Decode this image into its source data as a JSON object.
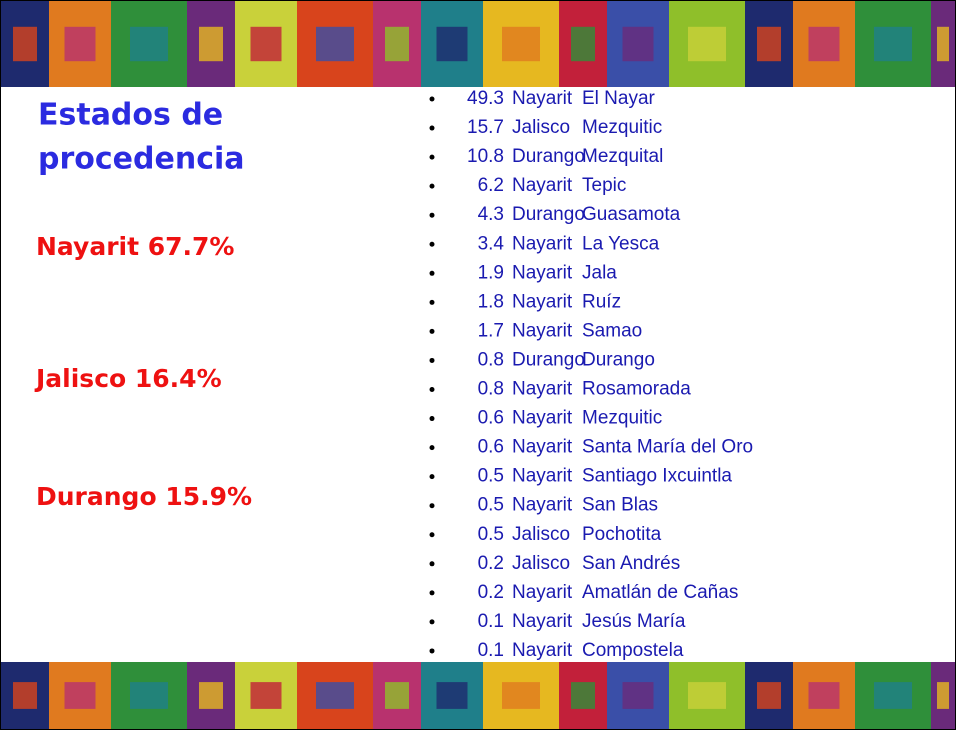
{
  "title": [
    "Estados de",
    "procedencia"
  ],
  "states": [
    "Nayarit 67.7%",
    "Jalisco 16.4%",
    "Durango 15.9%"
  ],
  "list": [
    {
      "value": 49.3,
      "state": "Nayarit",
      "place": "El Nayar"
    },
    {
      "value": 15.7,
      "state": "Jalisco",
      "place": "Mezquitic"
    },
    {
      "value": 10.8,
      "state": "Durango",
      "place": "Mezquital"
    },
    {
      "value": 6.2,
      "state": "Nayarit",
      "place": "Tepic"
    },
    {
      "value": 4.3,
      "state": "Durango",
      "place": "Guasamota"
    },
    {
      "value": 3.4,
      "state": "Nayarit",
      "place": "La Yesca"
    },
    {
      "value": 1.9,
      "state": "Nayarit",
      "place": "Jala"
    },
    {
      "value": 1.8,
      "state": "Nayarit",
      "place": "Ruíz"
    },
    {
      "value": 1.7,
      "state": "Nayarit",
      "place": "Samao"
    },
    {
      "value": 0.8,
      "state": "Durango",
      "place": "Durango"
    },
    {
      "value": 0.8,
      "state": "Nayarit",
      "place": "Rosamorada"
    },
    {
      "value": 0.6,
      "state": "Nayarit",
      "place": "Mezquitic"
    },
    {
      "value": 0.6,
      "state": "Nayarit",
      "place": "Santa María del Oro"
    },
    {
      "value": 0.5,
      "state": "Nayarit",
      "place": "Santiago Ixcuintla"
    },
    {
      "value": 0.5,
      "state": "Nayarit",
      "place": "San Blas"
    },
    {
      "value": 0.5,
      "state": "Jalisco",
      "place": "Pochotita"
    },
    {
      "value": 0.2,
      "state": "Jalisco",
      "place": "San Andrés"
    },
    {
      "value": 0.2,
      "state": "Nayarit",
      "place": "Amatlán de Cañas"
    },
    {
      "value": 0.1,
      "state": "Nayarit",
      "place": "Jesús María"
    },
    {
      "value": 0.1,
      "state": "Nayarit",
      "place": "Compostela"
    }
  ]
}
